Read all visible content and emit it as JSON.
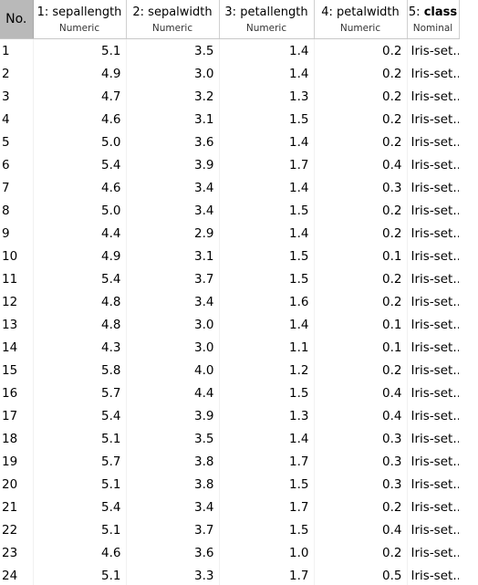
{
  "table": {
    "index_header": "No.",
    "columns": [
      {
        "index": "1: ",
        "name": "sepallength",
        "type": "Numeric",
        "bold": false
      },
      {
        "index": "2: ",
        "name": "sepalwidth",
        "type": "Numeric",
        "bold": false
      },
      {
        "index": "3: ",
        "name": "petallength",
        "type": "Numeric",
        "bold": false
      },
      {
        "index": "4: ",
        "name": "petalwidth",
        "type": "Numeric",
        "bold": false
      },
      {
        "index": "5: ",
        "name": "class",
        "type": "Nominal",
        "bold": true
      }
    ],
    "rows": [
      [
        "1",
        "5.1",
        "3.5",
        "1.4",
        "0.2",
        "Iris-set..."
      ],
      [
        "2",
        "4.9",
        "3.0",
        "1.4",
        "0.2",
        "Iris-set..."
      ],
      [
        "3",
        "4.7",
        "3.2",
        "1.3",
        "0.2",
        "Iris-set..."
      ],
      [
        "4",
        "4.6",
        "3.1",
        "1.5",
        "0.2",
        "Iris-set..."
      ],
      [
        "5",
        "5.0",
        "3.6",
        "1.4",
        "0.2",
        "Iris-set..."
      ],
      [
        "6",
        "5.4",
        "3.9",
        "1.7",
        "0.4",
        "Iris-set..."
      ],
      [
        "7",
        "4.6",
        "3.4",
        "1.4",
        "0.3",
        "Iris-set..."
      ],
      [
        "8",
        "5.0",
        "3.4",
        "1.5",
        "0.2",
        "Iris-set..."
      ],
      [
        "9",
        "4.4",
        "2.9",
        "1.4",
        "0.2",
        "Iris-set..."
      ],
      [
        "10",
        "4.9",
        "3.1",
        "1.5",
        "0.1",
        "Iris-set..."
      ],
      [
        "11",
        "5.4",
        "3.7",
        "1.5",
        "0.2",
        "Iris-set..."
      ],
      [
        "12",
        "4.8",
        "3.4",
        "1.6",
        "0.2",
        "Iris-set..."
      ],
      [
        "13",
        "4.8",
        "3.0",
        "1.4",
        "0.1",
        "Iris-set..."
      ],
      [
        "14",
        "4.3",
        "3.0",
        "1.1",
        "0.1",
        "Iris-set..."
      ],
      [
        "15",
        "5.8",
        "4.0",
        "1.2",
        "0.2",
        "Iris-set..."
      ],
      [
        "16",
        "5.7",
        "4.4",
        "1.5",
        "0.4",
        "Iris-set..."
      ],
      [
        "17",
        "5.4",
        "3.9",
        "1.3",
        "0.4",
        "Iris-set..."
      ],
      [
        "18",
        "5.1",
        "3.5",
        "1.4",
        "0.3",
        "Iris-set..."
      ],
      [
        "19",
        "5.7",
        "3.8",
        "1.7",
        "0.3",
        "Iris-set..."
      ],
      [
        "20",
        "5.1",
        "3.8",
        "1.5",
        "0.3",
        "Iris-set..."
      ],
      [
        "21",
        "5.4",
        "3.4",
        "1.7",
        "0.2",
        "Iris-set..."
      ],
      [
        "22",
        "5.1",
        "3.7",
        "1.5",
        "0.4",
        "Iris-set..."
      ],
      [
        "23",
        "4.6",
        "3.6",
        "1.0",
        "0.2",
        "Iris-set..."
      ],
      [
        "24",
        "5.1",
        "3.3",
        "1.7",
        "0.5",
        "Iris-set..."
      ]
    ]
  },
  "colors": {
    "index_header_bg": "#b9b9b9",
    "background": "#ffffff"
  }
}
